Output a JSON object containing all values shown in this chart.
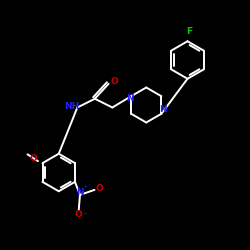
{
  "bg_color": "#000000",
  "bond_color": "#ffffff",
  "F_color": "#00cc00",
  "N_color": "#2222ff",
  "O_color": "#cc0000",
  "lw": 1.4,
  "xlim": [
    0,
    10
  ],
  "ylim": [
    0,
    10
  ]
}
